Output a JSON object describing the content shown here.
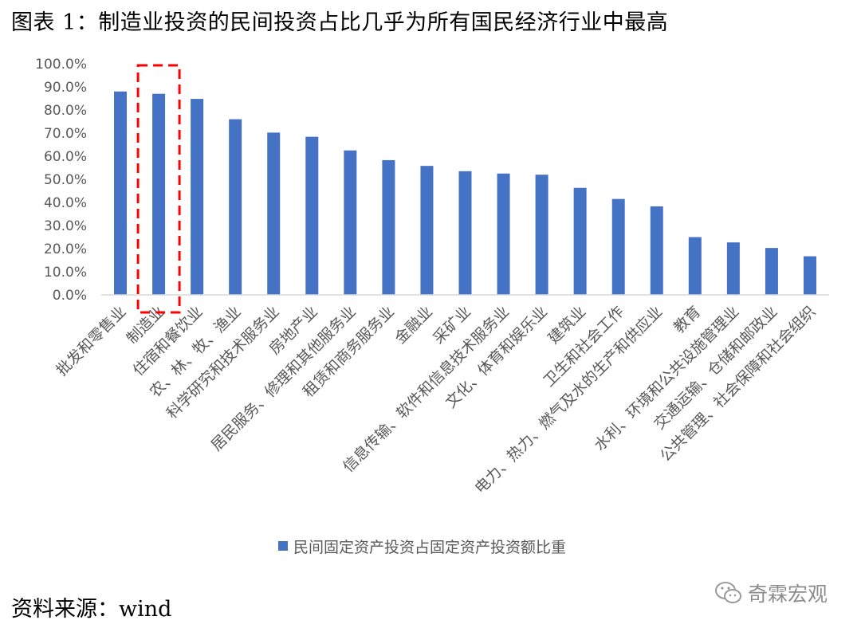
{
  "title": "图表 1：制造业投资的民间投资占比几乎为所有国民经济行业中最高",
  "source": "资料来源：wind",
  "watermark": {
    "text": "奇霖宏观",
    "icon": "wechat-icon"
  },
  "colors": {
    "bar": "#4472C4",
    "highlight_box": "#FF0000",
    "axis": "#D9D9D9",
    "text": "#595959"
  },
  "chart_data": {
    "type": "bar",
    "title": "",
    "xlabel": "",
    "ylabel": "",
    "ylim": [
      0,
      100
    ],
    "yticks": [
      "0.0%",
      "10.0%",
      "20.0%",
      "30.0%",
      "40.0%",
      "50.0%",
      "60.0%",
      "70.0%",
      "80.0%",
      "90.0%",
      "100.0%"
    ],
    "grid": false,
    "legend_position": "bottom",
    "categories": [
      "批发和零售业",
      "制造业",
      "住宿和餐饮业",
      "农、林、牧、渔业",
      "科学研究和技术服务业",
      "房地产业",
      "居民服务、修理和其他服务业",
      "租赁和商务服务业",
      "金融业",
      "采矿业",
      "信息传输、软件和信息技术服务业",
      "文化、体育和娱乐业",
      "建筑业",
      "卫生和社会工作",
      "电力、热力、燃气及水的生产和供应业",
      "教育",
      "水利、环境和公共设施管理业",
      "交通运输、仓储和邮政业",
      "公共管理、社会保障和社会组织"
    ],
    "series": [
      {
        "name": "民间固定资产投资占固定资产投资额比重",
        "values": [
          88.0,
          87.0,
          84.8,
          76.0,
          70.2,
          68.4,
          62.5,
          58.3,
          55.8,
          53.5,
          52.5,
          52.0,
          46.3,
          41.5,
          38.3,
          25.0,
          22.7,
          20.3,
          16.7
        ]
      }
    ],
    "highlighted_category": "制造业"
  }
}
